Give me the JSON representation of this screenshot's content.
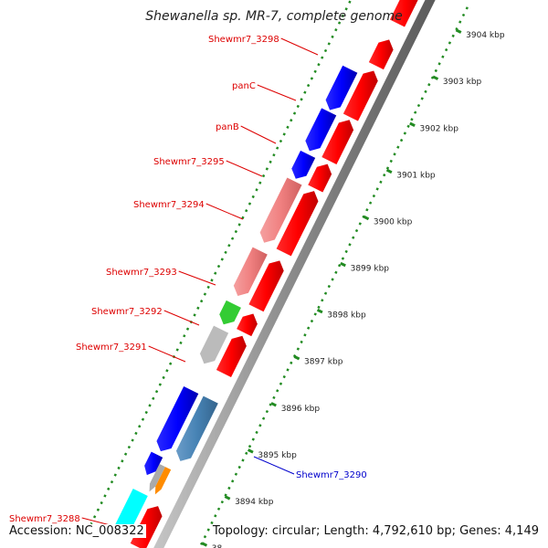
{
  "header": {
    "title": "Shewanella sp. MR-7, complete genome"
  },
  "footer": {
    "accession": "Accession: NC_008322",
    "topology": "Topology: circular; Length: 4,792,610 bp; Genes: 4,149"
  },
  "colors": {
    "forward_gene": "#ff0000",
    "reverse_gene": "#0000ff",
    "reverse_gene_light": "#f08080",
    "other_blue": "#4682b4",
    "green_gene": "#33cc33",
    "gray_gene": "#bbbbbb",
    "orange_gene": "#ff8c00",
    "cyan_gene": "#00ffff",
    "tick_green": "#228b22",
    "label_red": "#dd0000",
    "label_blue": "#0000cc"
  },
  "ruler": {
    "ticks": [
      {
        "label": "3904 kbp"
      },
      {
        "label": "3903 kbp"
      },
      {
        "label": "3902 kbp"
      },
      {
        "label": "3901 kbp"
      },
      {
        "label": "3900 kbp"
      },
      {
        "label": "3899 kbp"
      },
      {
        "label": "3898 kbp"
      },
      {
        "label": "3897 kbp"
      },
      {
        "label": "3896 kbp"
      },
      {
        "label": "3895 kbp"
      },
      {
        "label": "3894 kbp"
      },
      {
        "label": "38"
      }
    ]
  },
  "genes": [
    {
      "name": "Shewmr7_3298",
      "color": "red"
    },
    {
      "name": "panC",
      "color": "red"
    },
    {
      "name": "panB",
      "color": "red"
    },
    {
      "name": "Shewmr7_3295",
      "color": "red"
    },
    {
      "name": "Shewmr7_3294",
      "color": "red"
    },
    {
      "name": "Shewmr7_3293",
      "color": "red"
    },
    {
      "name": "Shewmr7_3292",
      "color": "red"
    },
    {
      "name": "Shewmr7_3291",
      "color": "red"
    },
    {
      "name": "Shewmr7_3290",
      "color": "blue"
    },
    {
      "name": "Shewmr7_3288",
      "color": "red"
    }
  ]
}
